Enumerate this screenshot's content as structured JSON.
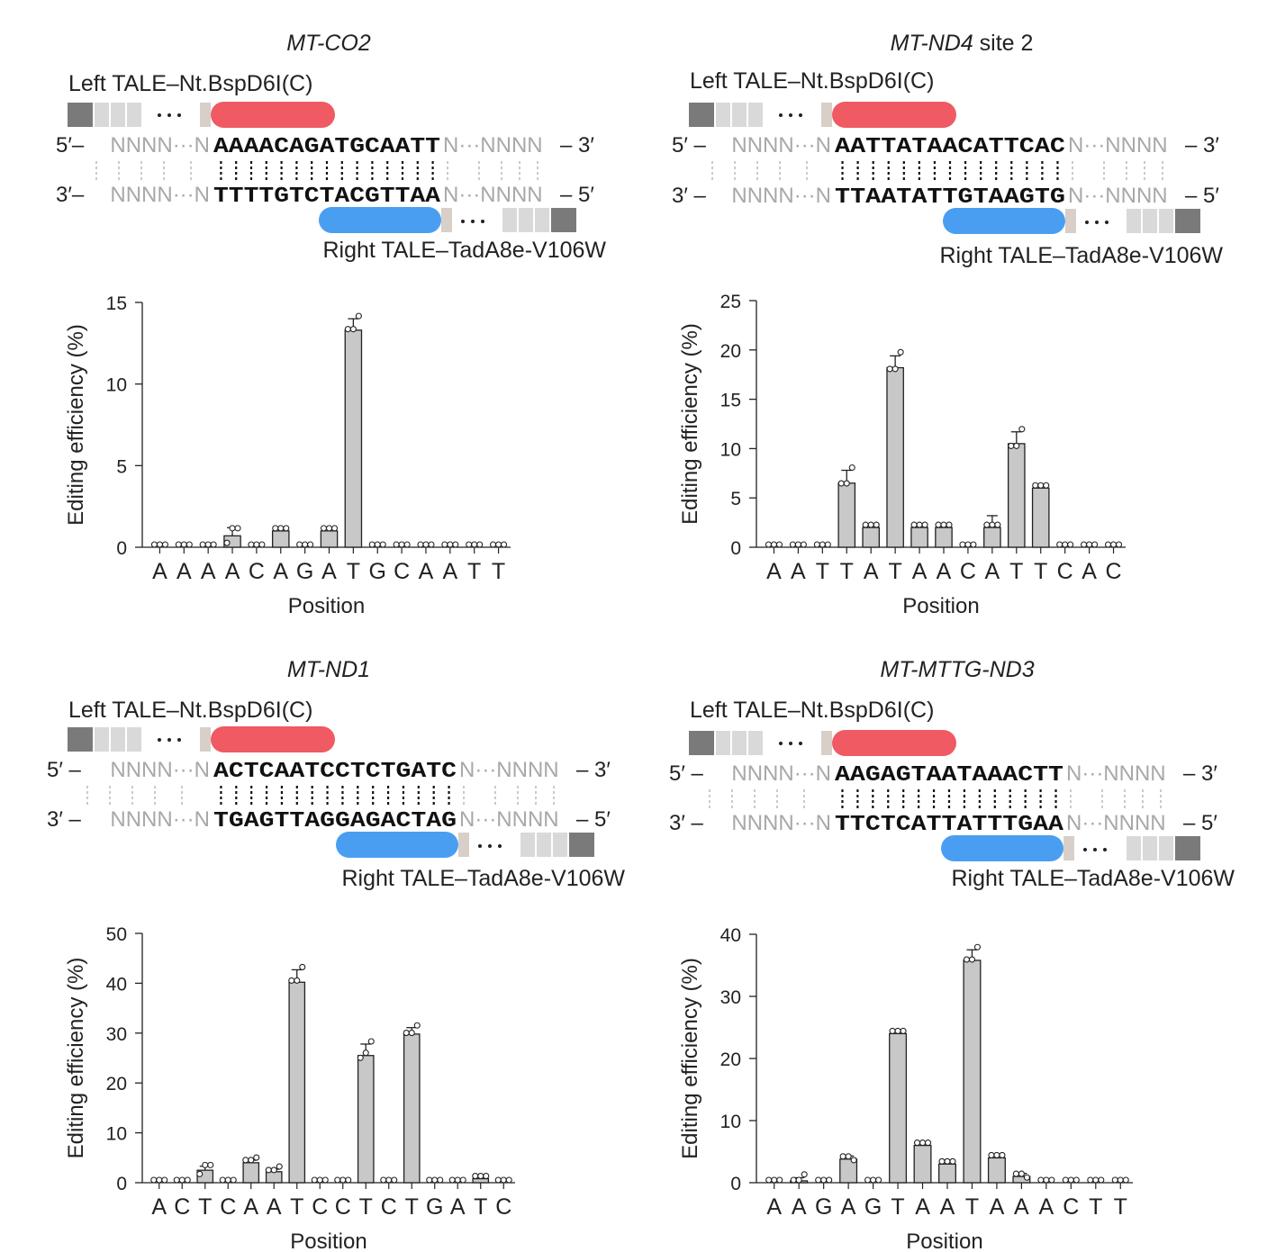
{
  "colors": {
    "left_tale": "#ef5a63",
    "right_tale": "#4a9ef2",
    "bar": "#c8c8c8",
    "repeat_light": "#d9d9d9",
    "repeat_dark": "#7a7a7a",
    "flank_text": "#a8a8a8"
  },
  "panels": [
    {
      "gene": "MT-CO2",
      "gene_suffix": "",
      "left_tale": "Left TALE–Nt.BspD6I(C)",
      "right_tale": "Right TALE–TadA8e-V106W",
      "strand_top_left": "5′–",
      "strand_top_right": "– 3′",
      "strand_bottom_left": "3′–",
      "strand_bottom_right": "– 5′",
      "flank_left": "NNNN···N",
      "flank_right": "N···NNNN",
      "top_seq": "AAAACAGATGCAATT",
      "bottom_seq": "TTTTGTCTACGTTAA"
    },
    {
      "gene": "MT-ND4",
      "gene_suffix": " site 2",
      "left_tale": "Left TALE–Nt.BspD6I(C)",
      "right_tale": "Right TALE–TadA8e-V106W",
      "strand_top_left": "5′ –",
      "strand_top_right": "– 3′",
      "strand_bottom_left": "3′ –",
      "strand_bottom_right": "– 5′",
      "flank_left": "NNNN···N",
      "flank_right": "N···NNNN",
      "top_seq": "AATTATAACATTCAC",
      "bottom_seq": "TTAATATTGTAAGTG"
    },
    {
      "gene": "MT-ND1",
      "gene_suffix": "",
      "left_tale": "Left TALE–Nt.BspD6I(C)",
      "right_tale": "Right TALE–TadA8e-V106W",
      "strand_top_left": "5′ –",
      "strand_top_right": "– 3′",
      "strand_bottom_left": "3′ –",
      "strand_bottom_right": "– 5′",
      "flank_left": "NNNN···N",
      "flank_right": "N···NNNN",
      "top_seq": "ACTCAATCCTCTGATC",
      "bottom_seq": "TGAGTTAGGAGACTAG"
    },
    {
      "gene": "MT-MTTG-ND3",
      "gene_suffix": "",
      "left_tale": "Left TALE–Nt.BspD6I(C)",
      "right_tale": "Right TALE–TadA8e-V106W",
      "strand_top_left": "5′ –",
      "strand_top_right": "– 3′",
      "strand_bottom_left": "3′ –",
      "strand_bottom_right": "– 5′",
      "flank_left": "NNNN···N",
      "flank_right": "N···NNNN",
      "top_seq": "AAGAGTAATAAACTT",
      "bottom_seq": "TTCTCATTATTTGAA"
    }
  ],
  "chart_data": [
    {
      "type": "bar",
      "categories": [
        "A",
        "A",
        "A",
        "A",
        "C",
        "A",
        "G",
        "A",
        "T",
        "G",
        "C",
        "A",
        "A",
        "T",
        "T"
      ],
      "values": [
        0,
        0,
        0,
        0.7,
        0,
        1.0,
        0,
        1.0,
        13.3,
        0,
        0,
        0,
        0,
        0,
        0
      ],
      "error": [
        0,
        0,
        0,
        0.5,
        0,
        0,
        0,
        0,
        0.7,
        0,
        0,
        0,
        0,
        0,
        0
      ],
      "replicates": [
        [
          0,
          0,
          0
        ],
        [
          0,
          0,
          0
        ],
        [
          0,
          0,
          0
        ],
        [
          0.1,
          1.0,
          1.0
        ],
        [
          0,
          0,
          0
        ],
        [
          1.0,
          1.0,
          1.0
        ],
        [
          0,
          0,
          0
        ],
        [
          1.0,
          1.0,
          1.0
        ],
        [
          13.2,
          13.2,
          14.0
        ],
        [
          0,
          0,
          0
        ],
        [
          0,
          0,
          0
        ],
        [
          0,
          0,
          0
        ],
        [
          0,
          0,
          0
        ],
        [
          0,
          0,
          0
        ],
        [
          0,
          0,
          0
        ]
      ],
      "xlabel": "Position",
      "ylabel": "Editing efficiency (%)",
      "ylim": [
        0,
        15
      ],
      "yticks": [
        0,
        5,
        10,
        15
      ]
    },
    {
      "type": "bar",
      "categories": [
        "A",
        "A",
        "T",
        "T",
        "A",
        "T",
        "A",
        "A",
        "C",
        "A",
        "T",
        "T",
        "C",
        "A",
        "C"
      ],
      "values": [
        0,
        0,
        0,
        6.5,
        2.0,
        18.2,
        2.0,
        2.0,
        0,
        2.0,
        10.5,
        6.0,
        0,
        0,
        0
      ],
      "error": [
        0,
        0,
        0,
        1.3,
        0,
        1.2,
        0,
        0,
        0,
        1.2,
        1.2,
        0,
        0,
        0,
        0
      ],
      "replicates": [
        [
          0,
          0,
          0
        ],
        [
          0,
          0,
          0
        ],
        [
          0,
          0,
          0
        ],
        [
          6.2,
          6.2,
          7.8
        ],
        [
          2.0,
          2.0,
          2.0
        ],
        [
          17.8,
          17.8,
          19.5
        ],
        [
          2.0,
          2.0,
          2.0
        ],
        [
          2.0,
          2.0,
          2.0
        ],
        [
          0,
          0,
          0
        ],
        [
          2.0,
          2.0,
          2.0
        ],
        [
          10.0,
          10.0,
          11.7
        ],
        [
          6.0,
          6.0,
          6.0
        ],
        [
          0,
          0,
          0
        ],
        [
          0,
          0,
          0
        ],
        [
          0,
          0,
          0
        ]
      ],
      "xlabel": "Position",
      "ylabel": "Editing efficiency (%)",
      "ylim": [
        0,
        25
      ],
      "yticks": [
        0,
        5,
        10,
        15,
        20,
        25
      ]
    },
    {
      "type": "bar",
      "categories": [
        "A",
        "C",
        "T",
        "C",
        "A",
        "A",
        "T",
        "C",
        "C",
        "T",
        "C",
        "T",
        "G",
        "A",
        "T",
        "C"
      ],
      "values": [
        0,
        0,
        2.5,
        0,
        4.0,
        2.2,
        40.2,
        0,
        0,
        25.5,
        0,
        29.8,
        0,
        0,
        0.8,
        0
      ],
      "error": [
        0,
        0,
        0.8,
        0,
        0.5,
        0.5,
        2.5,
        0,
        0,
        2.3,
        0,
        1.3,
        0,
        0,
        0,
        0
      ],
      "replicates": [
        [
          0,
          0,
          0
        ],
        [
          0,
          0,
          0
        ],
        [
          1.2,
          3.0,
          3.0
        ],
        [
          0,
          0,
          0
        ],
        [
          4.0,
          4.0,
          4.5
        ],
        [
          2.0,
          2.0,
          2.7
        ],
        [
          40.0,
          40.0,
          42.7
        ],
        [
          0,
          0,
          0
        ],
        [
          0,
          0,
          0
        ],
        [
          24.5,
          25.5,
          27.8
        ],
        [
          0,
          0,
          0
        ],
        [
          29.5,
          29.5,
          31.0
        ],
        [
          0,
          0,
          0
        ],
        [
          0,
          0,
          0
        ],
        [
          0.8,
          0.8,
          0.8
        ],
        [
          0,
          0,
          0
        ]
      ],
      "xlabel": "Position",
      "ylabel": "Editing efficiency (%)",
      "ylim": [
        0,
        50
      ],
      "yticks": [
        0,
        10,
        20,
        30,
        40,
        50
      ]
    },
    {
      "type": "bar",
      "categories": [
        "A",
        "A",
        "G",
        "A",
        "G",
        "T",
        "A",
        "A",
        "T",
        "A",
        "A",
        "A",
        "C",
        "T",
        "T"
      ],
      "values": [
        0,
        0.3,
        0,
        3.8,
        0,
        24.0,
        6.0,
        3.0,
        35.8,
        4.0,
        1.0,
        0,
        0,
        0,
        0
      ],
      "error": [
        0,
        0.5,
        0,
        0.5,
        0,
        0,
        0,
        0,
        1.7,
        0,
        0.5,
        0,
        0,
        0,
        0
      ],
      "replicates": [
        [
          0,
          0,
          0
        ],
        [
          0,
          0,
          0.9
        ],
        [
          0,
          0,
          0
        ],
        [
          3.8,
          3.8,
          3.2
        ],
        [
          0,
          0,
          0
        ],
        [
          24.0,
          24.0,
          24.0
        ],
        [
          6.0,
          6.0,
          6.0
        ],
        [
          3.0,
          3.0,
          3.0
        ],
        [
          35.5,
          35.5,
          37.5
        ],
        [
          4.0,
          4.0,
          4.0
        ],
        [
          1.0,
          1.0,
          0.4
        ],
        [
          0,
          0,
          0
        ],
        [
          0,
          0,
          0
        ],
        [
          0,
          0,
          0
        ],
        [
          0,
          0,
          0
        ]
      ],
      "xlabel": "Position",
      "ylabel": "Editing efficiency (%)",
      "ylim": [
        0,
        40
      ],
      "yticks": [
        0,
        10,
        20,
        30,
        40
      ]
    }
  ]
}
